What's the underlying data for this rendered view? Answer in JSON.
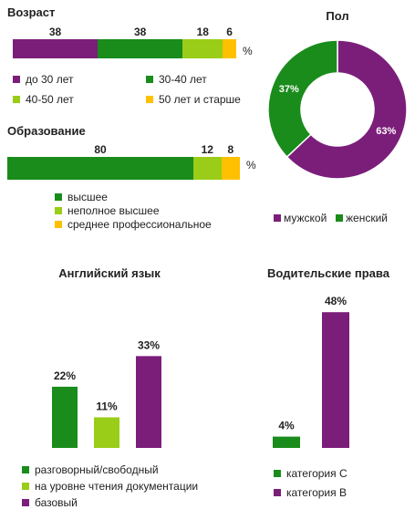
{
  "colors": {
    "purple": "#7B1E7A",
    "green": "#198C1B",
    "lime": "#9ACD17",
    "yellow": "#FFC000"
  },
  "chart_data": [
    {
      "id": "age",
      "type": "bar",
      "title": "Возраст",
      "unit": "%",
      "stacked": true,
      "series": [
        {
          "name": "до 30 лет",
          "values": [
            38
          ],
          "color": "#7B1E7A"
        },
        {
          "name": "30-40  лет",
          "values": [
            38
          ],
          "color": "#198C1B"
        },
        {
          "name": "40-50  лет",
          "values": [
            18
          ],
          "color": "#9ACD17"
        },
        {
          "name": "50  лет  и  старше",
          "values": [
            6
          ],
          "color": "#FFC000"
        }
      ]
    },
    {
      "id": "education",
      "type": "bar",
      "title": "Образование",
      "unit": "%",
      "stacked": true,
      "series": [
        {
          "name": "высшее",
          "values": [
            80
          ],
          "color": "#198C1B"
        },
        {
          "name": "неполное высшее",
          "values": [
            12
          ],
          "color": "#9ACD17"
        },
        {
          "name": "среднее профессиональное",
          "values": [
            8
          ],
          "color": "#FFC000"
        }
      ]
    },
    {
      "id": "gender",
      "type": "pie",
      "title": "Пол",
      "donut": true,
      "slices": [
        {
          "name": "мужской",
          "value": 63,
          "label": "63%",
          "color": "#7B1E7A"
        },
        {
          "name": "женский",
          "value": 37,
          "label": "37%",
          "color": "#198C1B"
        }
      ]
    },
    {
      "id": "english",
      "type": "bar",
      "title": "Английский  язык",
      "series": [
        {
          "name": "разговорный/свободный",
          "values": [
            22
          ],
          "label": "22%",
          "color": "#198C1B"
        },
        {
          "name": "на уровне чтения документации",
          "values": [
            11
          ],
          "label": "11%",
          "color": "#9ACD17"
        },
        {
          "name": "базовый",
          "values": [
            33
          ],
          "label": "33%",
          "color": "#7B1E7A"
        }
      ]
    },
    {
      "id": "license",
      "type": "bar",
      "title": "Водительские  права",
      "series": [
        {
          "name": "категория  С",
          "values": [
            4
          ],
          "label": "4%",
          "color": "#198C1B"
        },
        {
          "name": "категория  В",
          "values": [
            48
          ],
          "label": "48%",
          "color": "#7B1E7A"
        }
      ]
    }
  ]
}
